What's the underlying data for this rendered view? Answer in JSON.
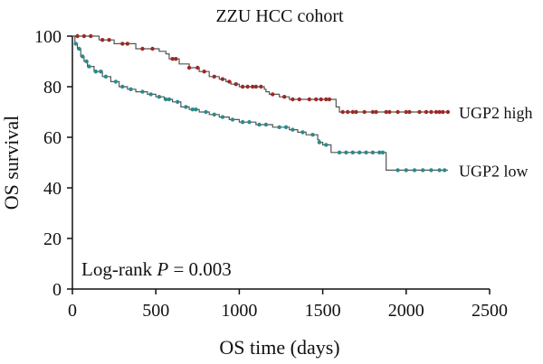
{
  "chart_data": {
    "type": "line",
    "title": "ZZU HCC cohort",
    "xlabel": "OS time (days)",
    "ylabel": "OS survival",
    "xlim": [
      0,
      2500
    ],
    "ylim": [
      0,
      100
    ],
    "x_ticks": [
      0,
      500,
      1000,
      1500,
      2000,
      2500
    ],
    "y_ticks": [
      0,
      20,
      40,
      60,
      80,
      100
    ],
    "grid": false,
    "annotation": {
      "prefix": "Log-rank ",
      "italic": "P",
      "suffix": " = 0.003"
    },
    "series": [
      {
        "name": "UGP2 high",
        "color": "#9b2a24",
        "step": [
          [
            0,
            100
          ],
          [
            120,
            100
          ],
          [
            160,
            98.5
          ],
          [
            250,
            97
          ],
          [
            380,
            95
          ],
          [
            520,
            94
          ],
          [
            560,
            93
          ],
          [
            580,
            91
          ],
          [
            640,
            89
          ],
          [
            700,
            87.5
          ],
          [
            760,
            86
          ],
          [
            820,
            84
          ],
          [
            880,
            83
          ],
          [
            920,
            82
          ],
          [
            950,
            81
          ],
          [
            1000,
            80
          ],
          [
            1140,
            80
          ],
          [
            1150,
            79
          ],
          [
            1160,
            78
          ],
          [
            1180,
            77
          ],
          [
            1240,
            76
          ],
          [
            1300,
            75
          ],
          [
            1380,
            75
          ],
          [
            1560,
            75
          ],
          [
            1580,
            72
          ],
          [
            1600,
            70
          ],
          [
            2250,
            70
          ]
        ],
        "censored_x": [
          30,
          70,
          110,
          180,
          220,
          300,
          330,
          420,
          480,
          600,
          620,
          700,
          750,
          790,
          850,
          900,
          940,
          980,
          1020,
          1050,
          1080,
          1100,
          1130,
          1200,
          1270,
          1320,
          1360,
          1420,
          1460,
          1490,
          1520,
          1540,
          1620,
          1650,
          1680,
          1700,
          1750,
          1800,
          1820,
          1880,
          1900,
          1950,
          2000,
          2020,
          2080,
          2120,
          2150,
          2180,
          2200,
          2220,
          2250
        ]
      },
      {
        "name": "UGP2 low",
        "color": "#2a8a8a",
        "step": [
          [
            0,
            100
          ],
          [
            15,
            97
          ],
          [
            30,
            95
          ],
          [
            50,
            92
          ],
          [
            70,
            90
          ],
          [
            90,
            88
          ],
          [
            130,
            86
          ],
          [
            180,
            84
          ],
          [
            230,
            82
          ],
          [
            280,
            80
          ],
          [
            330,
            79
          ],
          [
            380,
            78
          ],
          [
            450,
            77
          ],
          [
            500,
            76
          ],
          [
            550,
            75
          ],
          [
            600,
            74
          ],
          [
            650,
            72
          ],
          [
            700,
            71
          ],
          [
            760,
            70
          ],
          [
            820,
            69
          ],
          [
            880,
            68
          ],
          [
            940,
            67
          ],
          [
            1000,
            66
          ],
          [
            1100,
            65
          ],
          [
            1200,
            64
          ],
          [
            1300,
            63
          ],
          [
            1350,
            62
          ],
          [
            1400,
            61
          ],
          [
            1470,
            59
          ],
          [
            1480,
            58
          ],
          [
            1500,
            57
          ],
          [
            1550,
            54
          ],
          [
            1870,
            54
          ],
          [
            1880,
            47
          ],
          [
            2250,
            47
          ]
        ],
        "censored_x": [
          20,
          40,
          60,
          85,
          100,
          140,
          170,
          200,
          260,
          300,
          350,
          420,
          470,
          520,
          560,
          580,
          630,
          680,
          720,
          740,
          800,
          850,
          900,
          960,
          1020,
          1060,
          1120,
          1160,
          1240,
          1280,
          1320,
          1380,
          1440,
          1480,
          1520,
          1600,
          1640,
          1680,
          1720,
          1760,
          1800,
          1840,
          1860,
          1950,
          2000,
          2050,
          2100,
          2150,
          2200,
          2230
        ]
      }
    ]
  }
}
